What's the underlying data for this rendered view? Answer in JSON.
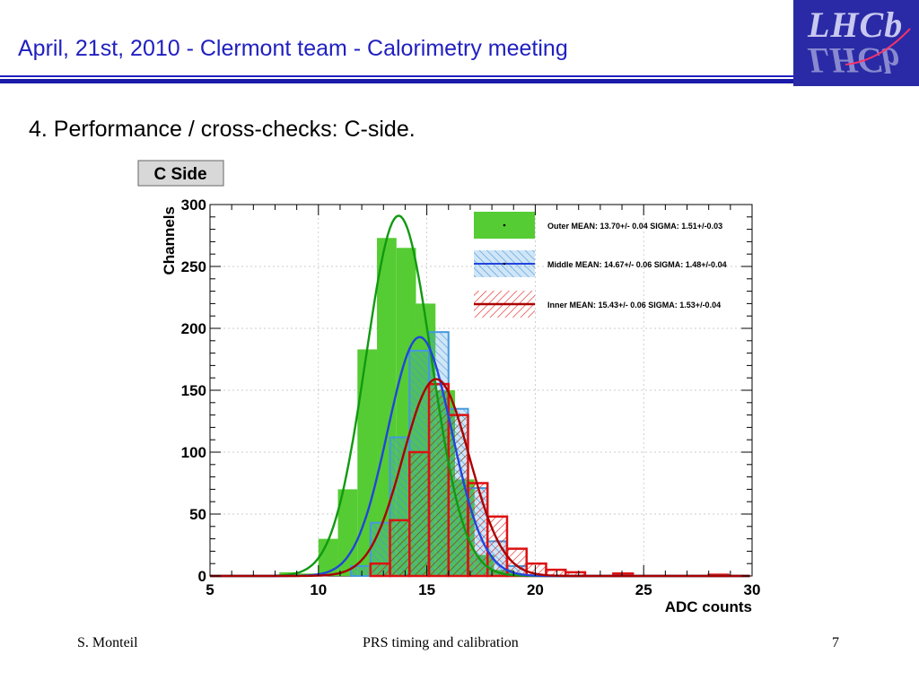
{
  "header": {
    "title": "April, 21st,  2010 - Clermont team - Calorimetry meeting",
    "logo_text": "LHCb"
  },
  "section": {
    "heading": "4. Performance /  cross-checks: C-side."
  },
  "footer": {
    "author": "S. Monteil",
    "subject": "PRS timing and calibration",
    "page_number": "7"
  },
  "colors": {
    "header_blue": "#2020c0",
    "outer": "#55cc33",
    "outer_fit": "#119911",
    "middle": "#4499dd",
    "middle_fit": "#2244dd",
    "inner": "#dd1111",
    "inner_fit": "#aa0000"
  },
  "chart_data": {
    "type": "bar",
    "panel_label": "C Side",
    "xlabel": "ADC counts",
    "ylabel": "Channels",
    "xlim": [
      5,
      30
    ],
    "ylim": [
      0,
      300
    ],
    "xticks": [
      5,
      10,
      15,
      20,
      25,
      30
    ],
    "yticks": [
      0,
      50,
      100,
      150,
      200,
      250,
      300
    ],
    "bin_width": 0.9,
    "legend_position": "top-right",
    "series": [
      {
        "name": "Outer",
        "legend": "Outer  MEAN: 13.70+/- 0.04  SIGMA: 1.51+/-0.03",
        "mean": 13.7,
        "sigma": 1.51,
        "fit_peak": 291,
        "bins": [
          {
            "x": 8.2,
            "y": 3
          },
          {
            "x": 9.1,
            "y": 2
          },
          {
            "x": 10.0,
            "y": 30
          },
          {
            "x": 10.9,
            "y": 70
          },
          {
            "x": 11.8,
            "y": 183
          },
          {
            "x": 12.7,
            "y": 273
          },
          {
            "x": 13.6,
            "y": 265
          },
          {
            "x": 14.5,
            "y": 220
          },
          {
            "x": 15.4,
            "y": 150
          },
          {
            "x": 16.3,
            "y": 78
          },
          {
            "x": 17.2,
            "y": 17
          },
          {
            "x": 18.1,
            "y": 5
          }
        ]
      },
      {
        "name": "Middle",
        "legend": "Middle MEAN: 14.67+/- 0.06  SIGMA: 1.48+/-0.04",
        "mean": 14.67,
        "sigma": 1.48,
        "fit_peak": 193,
        "bins": [
          {
            "x": 11.5,
            "y": 8
          },
          {
            "x": 12.4,
            "y": 43
          },
          {
            "x": 13.3,
            "y": 112
          },
          {
            "x": 14.2,
            "y": 182
          },
          {
            "x": 15.1,
            "y": 197
          },
          {
            "x": 16.0,
            "y": 135
          },
          {
            "x": 16.9,
            "y": 71
          },
          {
            "x": 17.8,
            "y": 28
          },
          {
            "x": 18.7,
            "y": 8
          }
        ]
      },
      {
        "name": "Inner",
        "legend": "Inner  MEAN: 15.43+/- 0.06  SIGMA: 1.53+/-0.04",
        "mean": 15.43,
        "sigma": 1.53,
        "fit_peak": 159,
        "bins": [
          {
            "x": 12.4,
            "y": 10
          },
          {
            "x": 13.3,
            "y": 45
          },
          {
            "x": 14.2,
            "y": 100
          },
          {
            "x": 15.1,
            "y": 155
          },
          {
            "x": 16.0,
            "y": 130
          },
          {
            "x": 16.9,
            "y": 75
          },
          {
            "x": 17.8,
            "y": 48
          },
          {
            "x": 18.7,
            "y": 22
          },
          {
            "x": 19.6,
            "y": 10
          },
          {
            "x": 20.5,
            "y": 5
          },
          {
            "x": 21.4,
            "y": 3
          },
          {
            "x": 23.6,
            "y": 2
          },
          {
            "x": 28.0,
            "y": 1
          }
        ]
      }
    ]
  }
}
